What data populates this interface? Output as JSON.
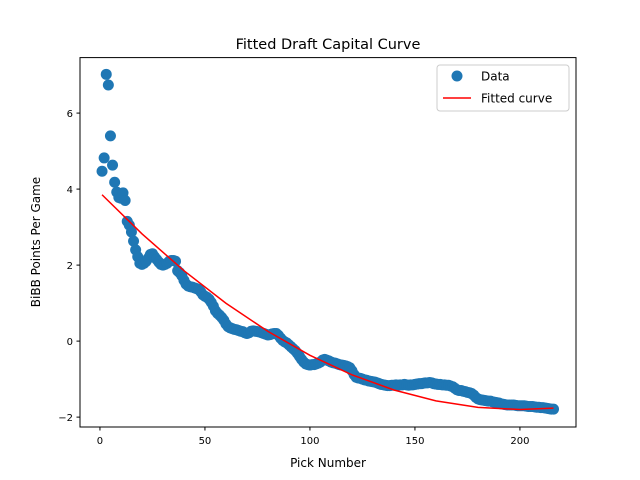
{
  "chart_data": {
    "type": "scatter",
    "title": "Fitted Draft Capital Curve",
    "xlabel": "Pick Number",
    "ylabel": "BiBB Points Per Game",
    "xlim": [
      -9.5,
      226.7
    ],
    "ylim": [
      -2.26,
      7.46
    ],
    "xticks": [
      0,
      50,
      100,
      150,
      200
    ],
    "yticks": [
      -2,
      0,
      2,
      4,
      6
    ],
    "grid": false,
    "legend": {
      "placement": "top-right",
      "entries": [
        "Data",
        "Fitted curve"
      ]
    },
    "colors": {
      "data": "#1f77b4",
      "fit": "#ff0000"
    },
    "series": [
      {
        "name": "Data",
        "kind": "scatter",
        "x_start": 1,
        "y": [
          4.47,
          4.82,
          7.02,
          6.74,
          5.4,
          4.63,
          4.18,
          3.92,
          3.78,
          3.76,
          3.9,
          3.7,
          3.15,
          3.05,
          2.87,
          2.63,
          2.4,
          2.22,
          2.05,
          2.02,
          2.05,
          2.1,
          2.18,
          2.28,
          2.3,
          2.22,
          2.15,
          2.08,
          2.02,
          2.0,
          2.02,
          2.05,
          2.1,
          2.12,
          2.12,
          2.1,
          1.85,
          1.8,
          1.72,
          1.6,
          1.5,
          1.45,
          1.43,
          1.42,
          1.4,
          1.38,
          1.36,
          1.3,
          1.22,
          1.18,
          1.15,
          1.1,
          1.02,
          0.92,
          0.8,
          0.73,
          0.68,
          0.62,
          0.55,
          0.45,
          0.38,
          0.35,
          0.33,
          0.31,
          0.3,
          0.28,
          0.26,
          0.25,
          0.22,
          0.2,
          0.22,
          0.26,
          0.27,
          0.26,
          0.25,
          0.24,
          0.22,
          0.2,
          0.18,
          0.16,
          0.17,
          0.19,
          0.2,
          0.2,
          0.15,
          0.08,
          0.02,
          -0.02,
          -0.05,
          -0.1,
          -0.15,
          -0.2,
          -0.25,
          -0.32,
          -0.4,
          -0.48,
          -0.55,
          -0.6,
          -0.62,
          -0.63,
          -0.62,
          -0.62,
          -0.6,
          -0.58,
          -0.55,
          -0.5,
          -0.48,
          -0.5,
          -0.52,
          -0.55,
          -0.57,
          -0.58,
          -0.6,
          -0.62,
          -0.63,
          -0.64,
          -0.65,
          -0.67,
          -0.7,
          -0.78,
          -0.88,
          -0.95,
          -0.97,
          -0.98,
          -1.0,
          -1.02,
          -1.03,
          -1.05,
          -1.06,
          -1.07,
          -1.08,
          -1.1,
          -1.12,
          -1.14,
          -1.15,
          -1.16,
          -1.17,
          -1.17,
          -1.16,
          -1.16,
          -1.15,
          -1.16,
          -1.15,
          -1.15,
          -1.14,
          -1.15,
          -1.16,
          -1.15,
          -1.15,
          -1.14,
          -1.13,
          -1.12,
          -1.12,
          -1.11,
          -1.1,
          -1.1,
          -1.09,
          -1.1,
          -1.12,
          -1.13,
          -1.14,
          -1.14,
          -1.15,
          -1.15,
          -1.16,
          -1.16,
          -1.18,
          -1.2,
          -1.24,
          -1.28,
          -1.3,
          -1.3,
          -1.32,
          -1.33,
          -1.35,
          -1.36,
          -1.38,
          -1.42,
          -1.48,
          -1.52,
          -1.54,
          -1.55,
          -1.56,
          -1.57,
          -1.58,
          -1.58,
          -1.6,
          -1.61,
          -1.62,
          -1.63,
          -1.65,
          -1.66,
          -1.67,
          -1.68,
          -1.68,
          -1.68,
          -1.68,
          -1.69,
          -1.7,
          -1.7,
          -1.7,
          -1.7,
          -1.71,
          -1.72,
          -1.72,
          -1.72,
          -1.73,
          -1.74,
          -1.74,
          -1.75,
          -1.75,
          -1.76,
          -1.77,
          -1.78,
          -1.79,
          -1.79
        ]
      },
      {
        "name": "Fitted curve",
        "kind": "line",
        "x": [
          1,
          20,
          40,
          60,
          80,
          100,
          120,
          140,
          160,
          180,
          200,
          216
        ],
        "y": [
          3.851,
          2.823,
          1.853,
          0.997,
          0.255,
          -0.373,
          -0.887,
          -1.286,
          -1.572,
          -1.743,
          -1.8,
          -1.763
        ]
      }
    ]
  }
}
